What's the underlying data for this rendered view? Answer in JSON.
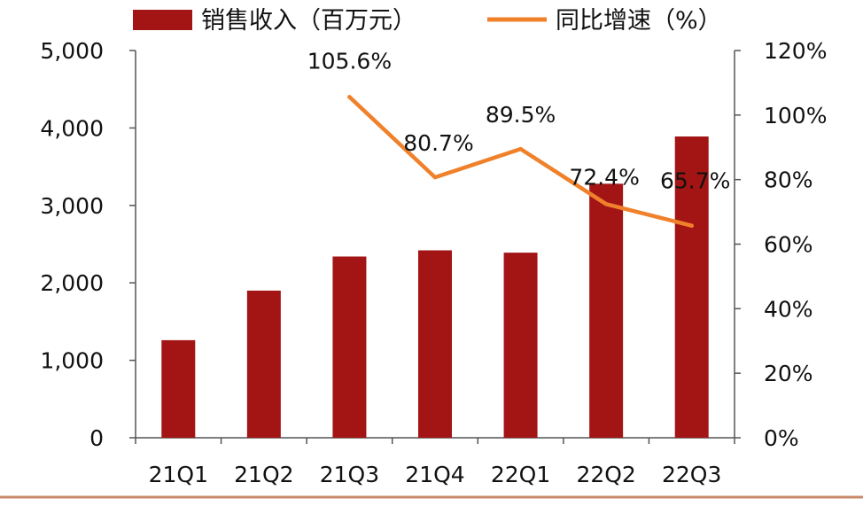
{
  "colors": {
    "bar": "#a31515",
    "line": "#f0812b",
    "axis": "#555555",
    "footer_rule": "#c9886a"
  },
  "legend": {
    "bar_label": "销售收入（百万元）",
    "line_label": "同比增速（%）"
  },
  "chart_data": {
    "type": "bar",
    "categories": [
      "21Q1",
      "21Q2",
      "21Q3",
      "21Q4",
      "22Q1",
      "22Q2",
      "22Q3"
    ],
    "series": [
      {
        "name": "销售收入（百万元）",
        "type": "bar",
        "axis": "left",
        "values": [
          1260,
          1900,
          2340,
          2420,
          2390,
          3280,
          3890
        ]
      },
      {
        "name": "同比增速（%）",
        "type": "line",
        "axis": "right",
        "values": [
          null,
          null,
          105.6,
          80.7,
          89.5,
          72.4,
          65.7
        ],
        "labels": [
          "",
          "",
          "105.6%",
          "80.7%",
          "89.5%",
          "72.4%",
          "65.7%"
        ]
      }
    ],
    "y_left": {
      "lim": [
        0,
        5000
      ],
      "ticks": [
        0,
        1000,
        2000,
        3000,
        4000,
        5000
      ],
      "tick_labels": [
        "0",
        "1,000",
        "2,000",
        "3,000",
        "4,000",
        "5,000"
      ]
    },
    "y_right": {
      "lim": [
        0,
        120
      ],
      "ticks": [
        0,
        20,
        40,
        60,
        80,
        100,
        120
      ],
      "tick_labels": [
        "0%",
        "20%",
        "40%",
        "60%",
        "80%",
        "100%",
        "120%"
      ]
    },
    "grid": false,
    "legend_position": "top"
  }
}
